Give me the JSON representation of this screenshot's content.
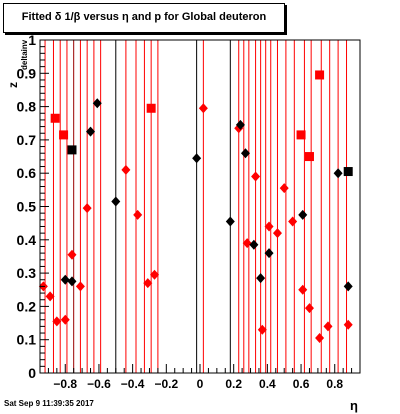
{
  "title": "Fitted δ 1/β versus η and p for Global deuteron",
  "footer_timestamp": "Sat Sep  9 11:39:35 2017",
  "xlabel": "η",
  "ylabel_main": "z",
  "ylabel_sub": "deltainv",
  "colors": {
    "red": "#ff0000",
    "black": "#000000",
    "darkred": "#990000"
  },
  "chart_data": {
    "type": "scatter",
    "title": "Fitted δ 1/β versus η and p for Global deuteron",
    "xlabel": "η",
    "ylabel": "z deltainv",
    "xlim": [
      -0.95,
      0.95
    ],
    "ylim": [
      0,
      1
    ],
    "xticks": [
      -0.8,
      -0.6,
      -0.4,
      -0.2,
      0,
      0.2,
      0.4,
      0.6,
      0.8
    ],
    "xtick_labels": [
      "−0.8",
      "−0.6",
      "−0.4",
      "−0.2",
      "0",
      "0.2",
      "0.4",
      "0.6",
      "0.8"
    ],
    "yticks": [
      0,
      0.1,
      0.2,
      0.3,
      0.4,
      0.5,
      0.6,
      0.7,
      0.8,
      0.9,
      1
    ],
    "ytick_labels": [
      "0",
      "0.1",
      "0.2",
      "0.3",
      "0.4",
      "0.5",
      "0.6",
      "0.7",
      "0.8",
      "0.9",
      "1"
    ],
    "grid": false,
    "vertical_lines": [
      {
        "x": -0.92,
        "color": "red"
      },
      {
        "x": -0.87,
        "color": "red"
      },
      {
        "x": -0.83,
        "color": "red"
      },
      {
        "x": -0.79,
        "color": "red"
      },
      {
        "x": -0.75,
        "color": "darkred"
      },
      {
        "x": -0.71,
        "color": "red"
      },
      {
        "x": -0.67,
        "color": "red"
      },
      {
        "x": -0.63,
        "color": "red"
      },
      {
        "x": -0.59,
        "color": "red"
      },
      {
        "x": -0.5,
        "color": "black"
      },
      {
        "x": -0.44,
        "color": "red"
      },
      {
        "x": -0.38,
        "color": "red"
      },
      {
        "x": -0.33,
        "color": "red"
      },
      {
        "x": -0.29,
        "color": "red"
      },
      {
        "x": -0.25,
        "color": "red"
      },
      {
        "x": -0.02,
        "color": "black"
      },
      {
        "x": 0.02,
        "color": "red"
      },
      {
        "x": 0.18,
        "color": "black"
      },
      {
        "x": 0.23,
        "color": "red"
      },
      {
        "x": 0.26,
        "color": "red"
      },
      {
        "x": 0.29,
        "color": "red"
      },
      {
        "x": 0.33,
        "color": "red"
      },
      {
        "x": 0.36,
        "color": "red"
      },
      {
        "x": 0.39,
        "color": "red"
      },
      {
        "x": 0.42,
        "color": "red"
      },
      {
        "x": 0.46,
        "color": "red"
      },
      {
        "x": 0.51,
        "color": "red"
      },
      {
        "x": 0.56,
        "color": "red"
      },
      {
        "x": 0.62,
        "color": "red"
      },
      {
        "x": 0.66,
        "color": "red"
      },
      {
        "x": 0.72,
        "color": "red"
      },
      {
        "x": 0.77,
        "color": "red"
      },
      {
        "x": 0.82,
        "color": "red"
      },
      {
        "x": 0.87,
        "color": "red"
      }
    ],
    "series": [
      {
        "marker": "diamond",
        "color": "red",
        "points": [
          {
            "x": -0.93,
            "y": 0.26
          },
          {
            "x": -0.89,
            "y": 0.23
          },
          {
            "x": -0.85,
            "y": 0.155
          },
          {
            "x": -0.8,
            "y": 0.16
          },
          {
            "x": -0.76,
            "y": 0.355
          },
          {
            "x": -0.71,
            "y": 0.26
          },
          {
            "x": -0.67,
            "y": 0.495
          },
          {
            "x": -0.44,
            "y": 0.61
          },
          {
            "x": -0.37,
            "y": 0.475
          },
          {
            "x": -0.31,
            "y": 0.27
          },
          {
            "x": -0.27,
            "y": 0.295
          },
          {
            "x": 0.02,
            "y": 0.795
          },
          {
            "x": 0.23,
            "y": 0.735
          },
          {
            "x": 0.28,
            "y": 0.39
          },
          {
            "x": 0.33,
            "y": 0.59
          },
          {
            "x": 0.37,
            "y": 0.13
          },
          {
            "x": 0.41,
            "y": 0.44
          },
          {
            "x": 0.46,
            "y": 0.42
          },
          {
            "x": 0.5,
            "y": 0.555
          },
          {
            "x": 0.55,
            "y": 0.455
          },
          {
            "x": 0.61,
            "y": 0.25
          },
          {
            "x": 0.65,
            "y": 0.195
          },
          {
            "x": 0.71,
            "y": 0.105
          },
          {
            "x": 0.76,
            "y": 0.14
          },
          {
            "x": 0.88,
            "y": 0.145
          }
        ]
      },
      {
        "marker": "square",
        "color": "red",
        "points": [
          {
            "x": -0.86,
            "y": 0.765
          },
          {
            "x": -0.81,
            "y": 0.715
          },
          {
            "x": -0.29,
            "y": 0.795
          },
          {
            "x": 0.6,
            "y": 0.715
          },
          {
            "x": 0.65,
            "y": 0.65
          },
          {
            "x": 0.71,
            "y": 0.895
          }
        ]
      },
      {
        "marker": "diamond",
        "color": "black",
        "points": [
          {
            "x": -0.8,
            "y": 0.28
          },
          {
            "x": -0.76,
            "y": 0.275
          },
          {
            "x": -0.65,
            "y": 0.725
          },
          {
            "x": -0.61,
            "y": 0.81
          },
          {
            "x": -0.5,
            "y": 0.515
          },
          {
            "x": -0.02,
            "y": 0.645
          },
          {
            "x": 0.18,
            "y": 0.455
          },
          {
            "x": 0.24,
            "y": 0.745
          },
          {
            "x": 0.27,
            "y": 0.66
          },
          {
            "x": 0.32,
            "y": 0.385
          },
          {
            "x": 0.36,
            "y": 0.285
          },
          {
            "x": 0.41,
            "y": 0.36
          },
          {
            "x": 0.61,
            "y": 0.475
          },
          {
            "x": 0.82,
            "y": 0.6
          },
          {
            "x": 0.88,
            "y": 0.26
          }
        ]
      },
      {
        "marker": "square",
        "color": "black",
        "points": [
          {
            "x": -0.76,
            "y": 0.67
          },
          {
            "x": 0.88,
            "y": 0.605
          }
        ]
      }
    ]
  }
}
